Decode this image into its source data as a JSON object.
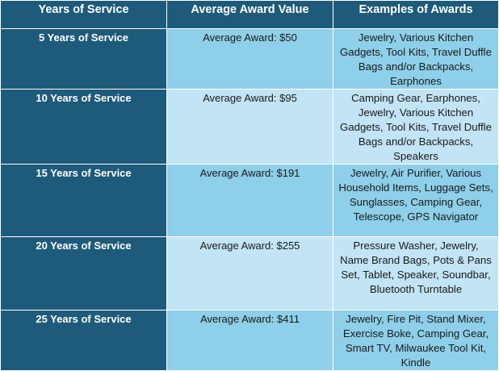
{
  "headers": {
    "years": "Years of Service",
    "award": "Average Award Value",
    "examples": "Examples of Awards"
  },
  "rows": [
    {
      "years": "5 Years of Service",
      "award": "Average Award: $50",
      "examples": "Jewelry, Various Kitchen Gadgets, Tool Kits, Travel Duffle Bags and/or Backpacks, Earphones"
    },
    {
      "years": "10 Years of Service",
      "award": "Average Award: $95",
      "examples": "Camping Gear, Earphones, Jewelry, Various Kitchen Gadgets, Tool Kits, Travel Duffle Bags and/or Backpacks, Speakers"
    },
    {
      "years": "15 Years of Service",
      "award": "Average Award: $191",
      "examples": "Jewelry, Air Purifier, Various Household Items, Luggage Sets, Sunglasses, Camping Gear, Telescope, GPS Navigator"
    },
    {
      "years": "20 Years of Service",
      "award": "Average Award: $255",
      "examples": "Pressure Washer, Jewelry, Name Brand Bags, Pots & Pans Set, Tablet, Speaker, Soundbar, Bluetooth Turntable"
    },
    {
      "years": "25 Years of Service",
      "award": "Average Award: $411",
      "examples": "Jewelry, Fire Pit, Stand Mixer, Exercise Boke, Camping Gear, Smart TV, Milwaukee Tool Kit, Kindle"
    }
  ],
  "colors": {
    "header_bg": "#1e5a7a",
    "row_dark": "#8ecfe9",
    "row_light": "#c2e4f4",
    "border": "#ffffff"
  }
}
